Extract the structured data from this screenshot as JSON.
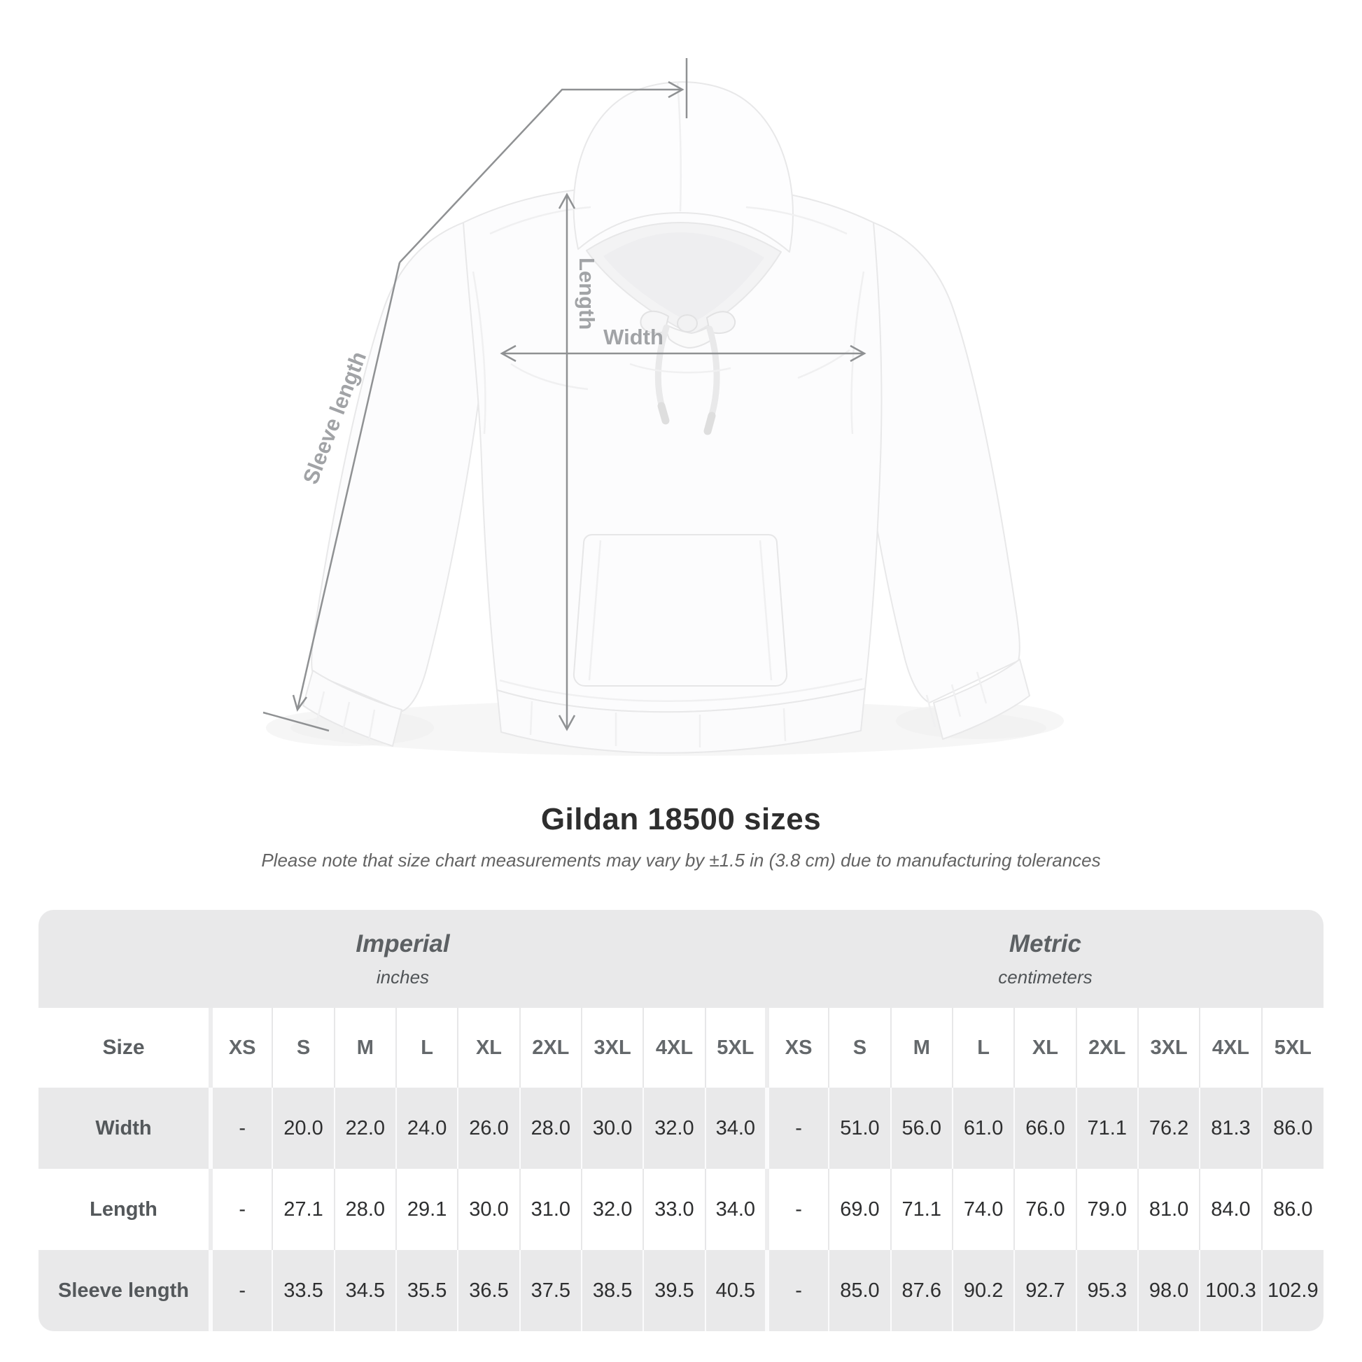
{
  "title": "Gildan 18500 sizes",
  "subtitle": "Please note that size chart measurements may vary by ±1.5 in (3.8 cm) due to manufacturing tolerances",
  "diagram": {
    "labels": {
      "length": "Length",
      "width": "Width",
      "sleeve_length": "Sleeve length"
    }
  },
  "table": {
    "size_label": "Size",
    "sizes": [
      "XS",
      "S",
      "M",
      "L",
      "XL",
      "2XL",
      "3XL",
      "4XL",
      "5XL"
    ],
    "unit_groups": [
      {
        "name": "Imperial",
        "unit": "inches"
      },
      {
        "name": "Metric",
        "unit": "centimeters"
      }
    ],
    "rows": [
      {
        "label": "Width",
        "imperial": [
          "-",
          "20.0",
          "22.0",
          "24.0",
          "26.0",
          "28.0",
          "30.0",
          "32.0",
          "34.0"
        ],
        "metric": [
          "-",
          "51.0",
          "56.0",
          "61.0",
          "66.0",
          "71.1",
          "76.2",
          "81.3",
          "86.0"
        ]
      },
      {
        "label": "Length",
        "imperial": [
          "-",
          "27.1",
          "28.0",
          "29.1",
          "30.0",
          "31.0",
          "32.0",
          "33.0",
          "34.0"
        ],
        "metric": [
          "-",
          "69.0",
          "71.1",
          "74.0",
          "76.0",
          "79.0",
          "81.0",
          "84.0",
          "86.0"
        ]
      },
      {
        "label": "Sleeve length",
        "imperial": [
          "-",
          "33.5",
          "34.5",
          "35.5",
          "36.5",
          "37.5",
          "38.5",
          "39.5",
          "40.5"
        ],
        "metric": [
          "-",
          "85.0",
          "87.6",
          "90.2",
          "92.7",
          "95.3",
          "98.0",
          "100.3",
          "102.9"
        ]
      }
    ]
  },
  "chart_data": {
    "type": "table",
    "title": "Gildan 18500 sizes",
    "note": "Please note that size chart measurements may vary by ±1.5 in (3.8 cm) due to manufacturing tolerances",
    "categories": [
      "XS",
      "S",
      "M",
      "L",
      "XL",
      "2XL",
      "3XL",
      "4XL",
      "5XL"
    ],
    "series": [
      {
        "name": "Width (inches)",
        "values": [
          null,
          20.0,
          22.0,
          24.0,
          26.0,
          28.0,
          30.0,
          32.0,
          34.0
        ]
      },
      {
        "name": "Length (inches)",
        "values": [
          null,
          27.1,
          28.0,
          29.1,
          30.0,
          31.0,
          32.0,
          33.0,
          34.0
        ]
      },
      {
        "name": "Sleeve length (inches)",
        "values": [
          null,
          33.5,
          34.5,
          35.5,
          36.5,
          37.5,
          38.5,
          39.5,
          40.5
        ]
      },
      {
        "name": "Width (cm)",
        "values": [
          null,
          51.0,
          56.0,
          61.0,
          66.0,
          71.1,
          76.2,
          81.3,
          86.0
        ]
      },
      {
        "name": "Length (cm)",
        "values": [
          null,
          69.0,
          71.1,
          74.0,
          76.0,
          79.0,
          81.0,
          84.0,
          86.0
        ]
      },
      {
        "name": "Sleeve length (cm)",
        "values": [
          null,
          85.0,
          87.6,
          90.2,
          92.7,
          95.3,
          98.0,
          100.3,
          102.9
        ]
      }
    ]
  },
  "colors": {
    "annotation_line": "#8f9193",
    "annotation_label": "#a1a3a6",
    "table_band": "#e9e9ea",
    "title_text": "#2e2e2e",
    "value_text": "#2e2f30"
  }
}
